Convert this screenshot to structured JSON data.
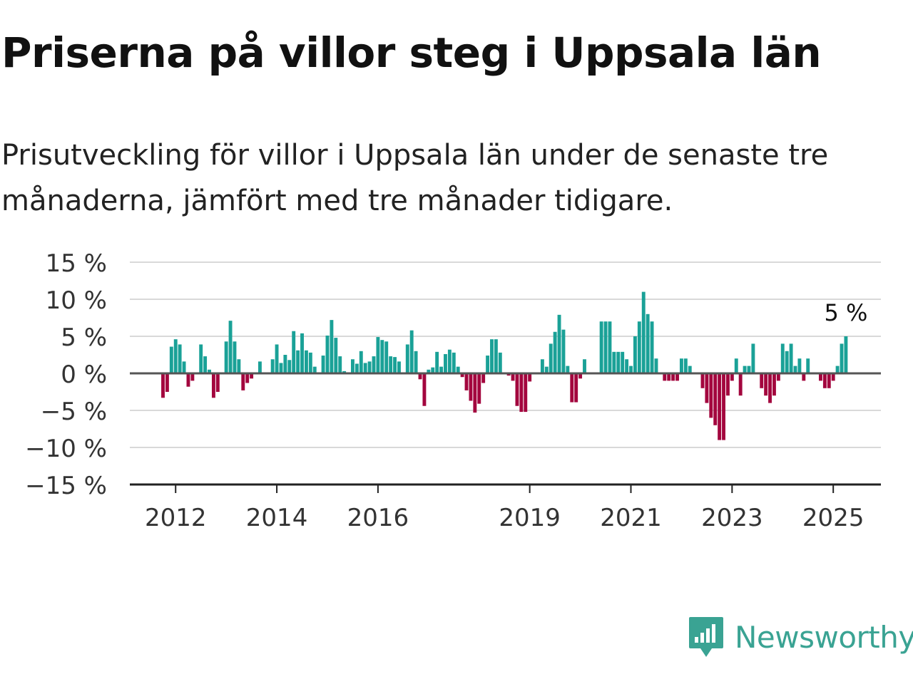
{
  "title": "Priserna på villor steg i Uppsala län",
  "subtitle": "Prisutveckling för villor i Uppsala län under de senaste tre månaderna, jämfört med tre månader tidigare.",
  "brand": {
    "name": "Newsworthy",
    "logo_icon": "bar-chart-speech-bubble-icon",
    "color": "#3aa393"
  },
  "colors": {
    "positive": "#1aa197",
    "negative": "#a3063e",
    "grid": "#d9d9d9",
    "zero_line": "#555555",
    "axis": "#222222"
  },
  "chart_data": {
    "type": "bar",
    "title": "Priserna på villor steg i Uppsala län",
    "subtitle": "Prisutveckling för villor i Uppsala län under de senaste tre månaderna, jämfört med tre månader tidigare.",
    "ylim": [
      -15,
      15
    ],
    "yticks": [
      15,
      10,
      5,
      0,
      -5,
      -10,
      -15
    ],
    "ytick_labels": [
      "15 %",
      "10 %",
      "5 %",
      "0 %",
      "−5 %",
      "−10 %",
      "−15 %"
    ],
    "xticks": [
      "2012",
      "2014",
      "2016",
      "2019",
      "2021",
      "2023",
      "2025"
    ],
    "x_start": "2011-10",
    "grid": true,
    "last_value_label": "5 %",
    "values": [
      -3.3,
      -2.5,
      3.6,
      4.6,
      3.9,
      1.6,
      -1.8,
      -1.0,
      0.0,
      3.9,
      2.3,
      0.5,
      -3.3,
      -2.5,
      0.0,
      4.3,
      7.1,
      4.3,
      1.9,
      -2.3,
      -1.3,
      -0.7,
      0.0,
      1.6,
      0.0,
      0.0,
      1.9,
      3.9,
      1.4,
      2.5,
      1.8,
      5.7,
      3.1,
      5.4,
      3.1,
      2.8,
      0.9,
      0.0,
      2.4,
      5.1,
      7.2,
      4.8,
      2.3,
      0.3,
      0.0,
      1.9,
      1.3,
      3.0,
      1.4,
      1.6,
      2.3,
      4.9,
      4.5,
      4.3,
      2.3,
      2.2,
      1.6,
      0.0,
      3.9,
      5.8,
      3.0,
      -0.8,
      -4.4,
      0.5,
      0.8,
      2.9,
      0.9,
      2.6,
      3.2,
      2.8,
      0.9,
      -0.5,
      -2.3,
      -3.7,
      -5.3,
      -4.1,
      -1.3,
      2.4,
      4.6,
      4.6,
      2.8,
      0.0,
      -0.3,
      -1.0,
      -4.4,
      -5.2,
      -5.2,
      -1.1,
      0.0,
      0.0,
      1.9,
      0.9,
      4.0,
      5.6,
      7.9,
      5.9,
      1.0,
      -3.9,
      -3.9,
      -0.7,
      1.9,
      0.0,
      0.0,
      0.0,
      7.0,
      7.0,
      7.0,
      2.9,
      2.9,
      2.9,
      1.9,
      1.0,
      5.0,
      7.0,
      11.0,
      8.0,
      7.0,
      2.0,
      0.0,
      -1.0,
      -1.0,
      -1.0,
      -1.0,
      2.0,
      2.0,
      1.0,
      0.0,
      0.0,
      -2.0,
      -4.0,
      -6.0,
      -7.0,
      -9.0,
      -9.0,
      -3.0,
      -1.0,
      2.0,
      -3.0,
      1.0,
      1.0,
      4.0,
      0.0,
      -2.0,
      -3.0,
      -4.0,
      -3.0,
      -1.0,
      4.0,
      3.0,
      4.0,
      1.0,
      2.0,
      -1.0,
      2.0,
      0.0,
      0.0,
      -1.0,
      -2.0,
      -2.0,
      -1.0,
      1.0,
      4.0,
      5.0
    ]
  }
}
